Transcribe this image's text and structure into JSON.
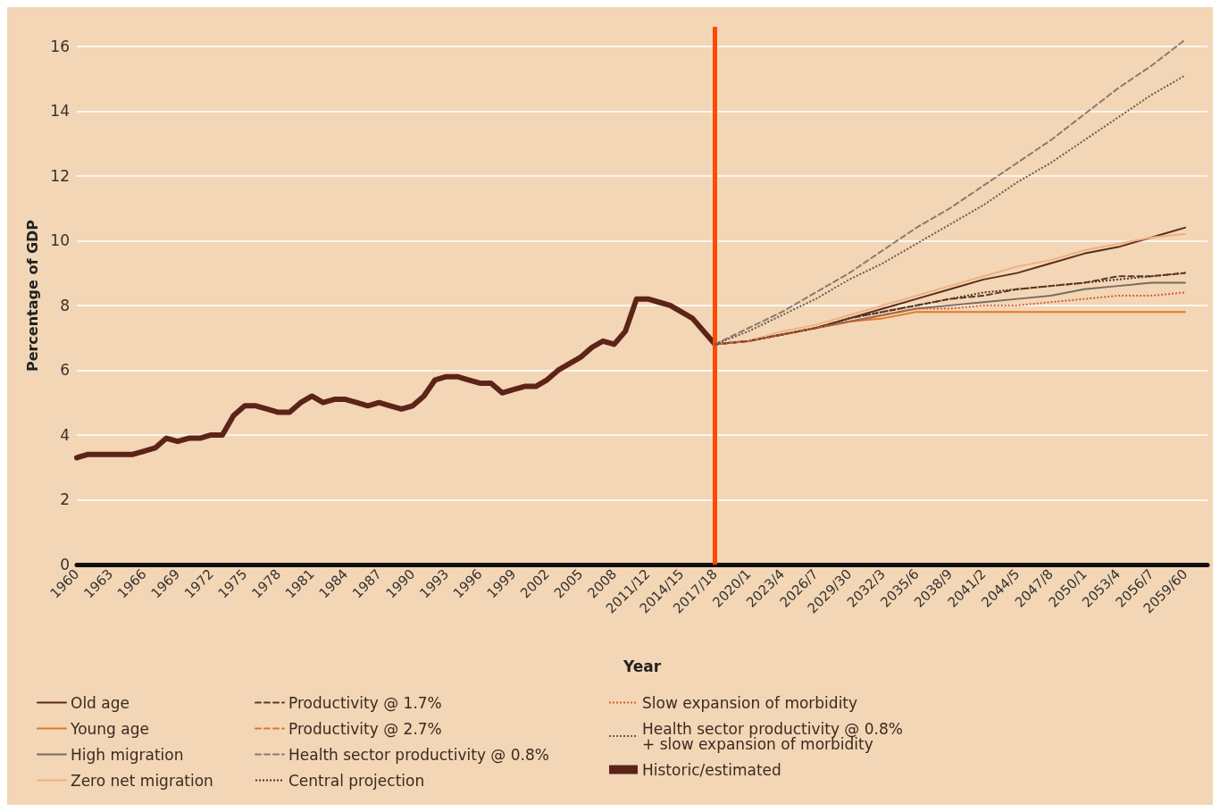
{
  "chart_data": {
    "type": "line",
    "ylabel": "Percentage of GDP",
    "xlabel": "Year",
    "categories": [
      "1960",
      null,
      null,
      "1963",
      null,
      null,
      "1966",
      null,
      null,
      "1969",
      null,
      null,
      "1972",
      null,
      null,
      "1975",
      null,
      null,
      "1978",
      null,
      null,
      "1981",
      null,
      null,
      "1984",
      null,
      null,
      "1987",
      null,
      null,
      "1990",
      null,
      null,
      "1993",
      null,
      null,
      "1996",
      null,
      null,
      "1999",
      null,
      null,
      "2002",
      null,
      null,
      "2005",
      null,
      null,
      "2008",
      null,
      null,
      "2011/12",
      null,
      null,
      "2014/15",
      null,
      null,
      "2017/18",
      null,
      null,
      "2020/1",
      null,
      null,
      "2023/4",
      null,
      null,
      "2026/7",
      null,
      null,
      "2029/30",
      null,
      null,
      "2032/3",
      null,
      null,
      "2035/6",
      null,
      null,
      "2038/9",
      null,
      null,
      "2041/2",
      null,
      null,
      "2044/5",
      null,
      null,
      "2047/8",
      null,
      null,
      "2050/1",
      null,
      null,
      "2053/4",
      null,
      null,
      "2056/7",
      null,
      null,
      "2059/60",
      null,
      null
    ],
    "ylim": [
      0,
      16.6
    ],
    "yticks": [
      0,
      2,
      4,
      6,
      8,
      10,
      12,
      14,
      16
    ],
    "grid": "y",
    "legend": "bottom",
    "marker": "none",
    "ref_lines": [
      {
        "axis": "x",
        "value": "2017/18",
        "color": "#ff4a00"
      }
    ],
    "series": [
      {
        "name": "Old age",
        "color": "#5a2a1e",
        "line_style": "solid",
        "x": [
          "2017/18",
          "2020/1",
          "2023/4",
          "2026/7",
          "2029/30",
          "2032/3",
          "2035/6",
          "2038/9",
          "2041/2",
          "2044/5",
          "2047/8",
          "2050/1",
          "2053/4",
          "2056/7",
          "2059/60"
        ],
        "values": [
          6.8,
          6.9,
          7.1,
          7.3,
          7.6,
          7.9,
          8.2,
          8.5,
          8.8,
          9.0,
          9.3,
          9.6,
          9.8,
          10.1,
          10.4
        ]
      },
      {
        "name": "Young age",
        "color": "#e07828",
        "line_style": "solid",
        "x": [
          "2017/18",
          "2020/1",
          "2023/4",
          "2026/7",
          "2029/30",
          "2032/3",
          "2035/6",
          "2038/9",
          "2041/2",
          "2044/5",
          "2047/8",
          "2050/1",
          "2053/4",
          "2056/7",
          "2059/60"
        ],
        "values": [
          6.8,
          6.9,
          7.1,
          7.3,
          7.5,
          7.6,
          7.8,
          7.8,
          7.8,
          7.8,
          7.8,
          7.8,
          7.8,
          7.8,
          7.8
        ]
      },
      {
        "name": "High migration",
        "color": "#7a6a60",
        "line_style": "solid",
        "x": [
          "2017/18",
          "2020/1",
          "2023/4",
          "2026/7",
          "2029/30",
          "2032/3",
          "2035/6",
          "2038/9",
          "2041/2",
          "2044/5",
          "2047/8",
          "2050/1",
          "2053/4",
          "2056/7",
          "2059/60"
        ],
        "values": [
          6.8,
          6.9,
          7.1,
          7.3,
          7.5,
          7.7,
          7.9,
          8.0,
          8.1,
          8.2,
          8.3,
          8.5,
          8.6,
          8.7,
          8.7
        ]
      },
      {
        "name": "Zero net migration",
        "color": "#f0b080",
        "line_style": "solid",
        "x": [
          "2017/18",
          "2020/1",
          "2023/4",
          "2026/7",
          "2029/30",
          "2032/3",
          "2035/6",
          "2038/9",
          "2041/2",
          "2044/5",
          "2047/8",
          "2050/1",
          "2053/4",
          "2056/7",
          "2059/60"
        ],
        "values": [
          6.8,
          6.9,
          7.2,
          7.4,
          7.7,
          8.0,
          8.3,
          8.6,
          8.9,
          9.2,
          9.4,
          9.7,
          9.9,
          10.1,
          10.2
        ]
      },
      {
        "name": "Productivity @ 1.7%",
        "color": "#5a3a2a",
        "line_style": "dashed",
        "x": [
          "2017/18",
          "2020/1",
          "2023/4",
          "2026/7",
          "2029/30",
          "2032/3",
          "2035/6",
          "2038/9",
          "2041/2",
          "2044/5",
          "2047/8",
          "2050/1",
          "2053/4",
          "2056/7",
          "2059/60"
        ],
        "values": [
          6.8,
          6.9,
          7.1,
          7.3,
          7.6,
          7.8,
          8.0,
          8.2,
          8.3,
          8.5,
          8.6,
          8.7,
          8.9,
          8.9,
          9.0
        ]
      },
      {
        "name": "Productivity @ 2.7%",
        "color": "#e07828",
        "line_style": "dashed",
        "x": [
          "2017/18",
          "2020/1",
          "2023/4",
          "2026/7",
          "2029/30",
          "2032/3",
          "2035/6",
          "2038/9",
          "2041/2",
          "2044/5",
          "2047/8",
          "2050/1",
          "2053/4",
          "2056/7",
          "2059/60"
        ],
        "values": [
          null,
          null,
          null,
          null,
          null,
          null,
          null,
          null,
          null,
          null,
          null,
          null,
          null,
          null,
          null
        ]
      },
      {
        "name": "Health sector productivity @ 0.8%",
        "color": "#8a7a70",
        "line_style": "dashed",
        "x": [
          "2017/18",
          "2020/1",
          "2023/4",
          "2026/7",
          "2029/30",
          "2032/3",
          "2035/6",
          "2038/9",
          "2041/2",
          "2044/5",
          "2047/8",
          "2050/1",
          "2053/4",
          "2056/7",
          "2059/60"
        ],
        "values": [
          6.8,
          7.3,
          7.8,
          8.4,
          9.0,
          9.7,
          10.4,
          11.0,
          11.7,
          12.4,
          13.1,
          13.9,
          14.7,
          15.4,
          16.2
        ]
      },
      {
        "name": "Central projection",
        "color": "#5a3020",
        "line_style": "dotted",
        "x": [
          "2017/18",
          "2020/1",
          "2023/4",
          "2026/7",
          "2029/30",
          "2032/3",
          "2035/6",
          "2038/9",
          "2041/2",
          "2044/5",
          "2047/8",
          "2050/1",
          "2053/4",
          "2056/7",
          "2059/60"
        ],
        "values": [
          6.8,
          6.9,
          7.1,
          7.3,
          7.6,
          7.8,
          8.0,
          8.2,
          8.4,
          8.5,
          8.6,
          8.7,
          8.8,
          8.9,
          9.0
        ]
      },
      {
        "name": "Slow expansion of morbidity",
        "color": "#d06030",
        "line_style": "dotted",
        "x": [
          "2017/18",
          "2020/1",
          "2023/4",
          "2026/7",
          "2029/30",
          "2032/3",
          "2035/6",
          "2038/9",
          "2041/2",
          "2044/5",
          "2047/8",
          "2050/1",
          "2053/4",
          "2056/7",
          "2059/60"
        ],
        "values": [
          6.8,
          6.9,
          7.1,
          7.3,
          7.5,
          7.7,
          7.9,
          7.9,
          8.0,
          8.0,
          8.1,
          8.2,
          8.3,
          8.3,
          8.4
        ]
      },
      {
        "name": "Health sector productivity @ 0.8%\n+ slow expansion of morbidity",
        "color": "#6a5a50",
        "line_style": "dotted",
        "x": [
          "2017/18",
          "2020/1",
          "2023/4",
          "2026/7",
          "2029/30",
          "2032/3",
          "2035/6",
          "2038/9",
          "2041/2",
          "2044/5",
          "2047/8",
          "2050/1",
          "2053/4",
          "2056/7",
          "2059/60"
        ],
        "values": [
          6.8,
          7.2,
          7.7,
          8.2,
          8.8,
          9.3,
          9.9,
          10.5,
          11.1,
          11.8,
          12.4,
          13.1,
          13.8,
          14.5,
          15.1
        ]
      },
      {
        "name": "Historic/estimated",
        "color": "#5c2418",
        "line_style": "solid",
        "values": [
          3.3,
          3.4,
          3.4,
          3.4,
          3.4,
          3.4,
          3.5,
          3.6,
          3.9,
          3.8,
          3.9,
          3.9,
          4.0,
          4.0,
          4.6,
          4.9,
          4.9,
          4.8,
          4.7,
          4.7,
          5.0,
          5.2,
          5.0,
          5.1,
          5.1,
          5.0,
          4.9,
          5.0,
          4.9,
          4.8,
          4.9,
          5.2,
          5.7,
          5.8,
          5.8,
          5.7,
          5.6,
          5.6,
          5.3,
          5.4,
          5.5,
          5.5,
          5.7,
          6.0,
          6.2,
          6.4,
          6.7,
          6.9,
          6.8,
          7.2,
          8.2,
          8.2,
          8.1,
          8.0,
          7.8,
          7.6,
          7.2,
          6.8,
          null,
          null,
          null,
          null,
          null,
          null,
          null,
          null,
          null,
          null,
          null,
          null,
          null,
          null,
          null,
          null,
          null,
          null,
          null,
          null,
          null,
          null,
          null,
          null,
          null,
          null,
          null,
          null,
          null,
          null,
          null,
          null,
          null,
          null,
          null,
          null,
          null,
          null,
          null,
          null,
          null,
          null,
          null,
          null
        ]
      }
    ]
  }
}
